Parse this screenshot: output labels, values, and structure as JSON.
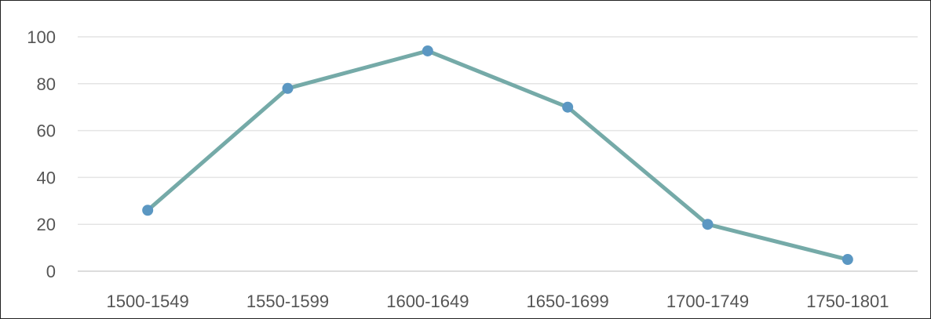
{
  "chart_data": {
    "type": "line",
    "title": "",
    "xlabel": "",
    "ylabel": "",
    "categories": [
      "1500-1549",
      "1550-1599",
      "1600-1649",
      "1650-1699",
      "1700-1749",
      "1750-1801"
    ],
    "series": [
      {
        "values": [
          26,
          78,
          94,
          70,
          20,
          5
        ]
      }
    ],
    "ylim": [
      0,
      100
    ],
    "yticks": [
      "0",
      "20",
      "40",
      "60",
      "80",
      "100"
    ],
    "grid": true,
    "legend": "none",
    "colors": {
      "line": "#75aaa8",
      "marker": "#5b97c2",
      "grid": "#e4e4e4",
      "axis": "#d0d0d0",
      "tick_text": "#555555"
    }
  }
}
